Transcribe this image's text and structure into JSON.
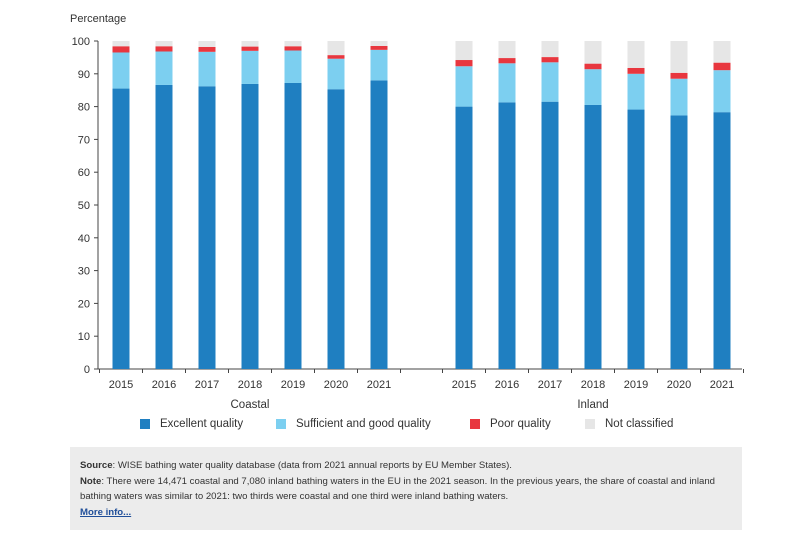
{
  "chart_data": {
    "type": "bar",
    "stacked": true,
    "ylabel": "Percentage",
    "ylim": [
      0,
      100
    ],
    "yticks": [
      0,
      10,
      20,
      30,
      40,
      50,
      60,
      70,
      80,
      90,
      100
    ],
    "groups": [
      {
        "name": "Coastal",
        "categories": [
          "2015",
          "2016",
          "2017",
          "2018",
          "2019",
          "2020",
          "2021"
        ],
        "series": [
          {
            "name": "Excellent quality",
            "values": [
              85.5,
              86.6,
              86.2,
              86.9,
              87.2,
              85.3,
              88.0
            ]
          },
          {
            "name": "Sufficient and good quality",
            "values": [
              11.0,
              10.2,
              10.5,
              10.1,
              9.9,
              9.3,
              9.3
            ]
          },
          {
            "name": "Poor quality",
            "values": [
              1.9,
              1.6,
              1.5,
              1.3,
              1.3,
              1.1,
              1.2
            ]
          },
          {
            "name": "Not classified",
            "values": [
              1.6,
              1.6,
              1.8,
              1.7,
              1.6,
              4.3,
              1.5
            ]
          }
        ]
      },
      {
        "name": "Inland",
        "categories": [
          "2015",
          "2016",
          "2017",
          "2018",
          "2019",
          "2020",
          "2021"
        ],
        "series": [
          {
            "name": "Excellent quality",
            "values": [
              80.0,
              81.3,
              81.5,
              80.5,
              79.1,
              77.3,
              78.3
            ]
          },
          {
            "name": "Sufficient and good quality",
            "values": [
              12.3,
              11.9,
              12.0,
              10.9,
              10.9,
              11.2,
              12.8
            ]
          },
          {
            "name": "Poor quality",
            "values": [
              1.9,
              1.6,
              1.6,
              1.7,
              1.8,
              1.8,
              2.3
            ]
          },
          {
            "name": "Not classified",
            "values": [
              5.8,
              5.2,
              4.9,
              6.9,
              8.2,
              9.7,
              6.6
            ]
          }
        ]
      }
    ],
    "colors": {
      "Excellent quality": "#1f7fc1",
      "Sufficient and good quality": "#7ccff0",
      "Poor quality": "#e8373f",
      "Not classified": "#e6e6e6"
    },
    "grid": false,
    "legend_position": "bottom"
  },
  "legend": {
    "items": [
      {
        "label": "Excellent quality",
        "color": "#1f7fc1"
      },
      {
        "label": "Sufficient and good quality",
        "color": "#7ccff0"
      },
      {
        "label": "Poor quality",
        "color": "#e8373f"
      },
      {
        "label": "Not classified",
        "color": "#e6e6e6"
      }
    ]
  },
  "source_box": {
    "source_label": "Source",
    "source_text": ": WISE bathing water quality database (data from 2021 annual reports by EU Member States).",
    "note_label": "Note",
    "note_text": ": There were 14,471 coastal and 7,080 inland bathing waters in the EU in the 2021 season. In the previous years, the share of coastal and inland bathing waters was similar to 2021: two thirds were coastal and one third were inland bathing waters.",
    "more_info": "More info..."
  }
}
